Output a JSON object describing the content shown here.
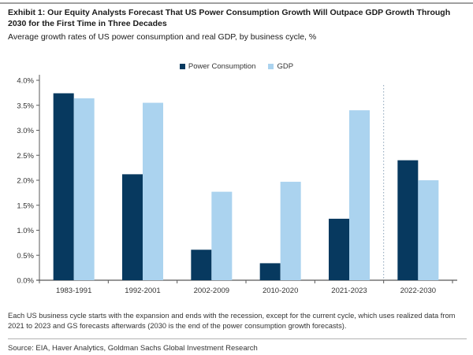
{
  "header": {
    "title": "Exhibit 1: Our Equity Analysts Forecast That US Power Consumption Growth Will Outpace GDP Growth Through 2030 for the First Time in Three Decades",
    "subtitle": "Average growth rates of US power consumption and real GDP, by business cycle, %"
  },
  "chart_data": {
    "type": "bar",
    "title": "Exhibit 1: Our Equity Analysts Forecast That US Power Consumption Growth Will Outpace GDP Growth Through 2030 for the First Time in Three Decades",
    "subtitle": "Average growth rates of US power consumption and real GDP, by business cycle, %",
    "categories": [
      "1983-1991",
      "1992-2001",
      "2002-2009",
      "2010-2020",
      "2021-2023",
      "2022-2030"
    ],
    "series": [
      {
        "name": "Power Consumption",
        "color": "#07395f",
        "values": [
          3.74,
          2.12,
          0.61,
          0.34,
          1.23,
          2.4
        ]
      },
      {
        "name": "GDP",
        "color": "#abd3ef",
        "values": [
          3.64,
          3.55,
          1.77,
          1.97,
          3.4,
          2.0
        ]
      }
    ],
    "xlabel": "",
    "ylabel": "",
    "ylim": [
      0,
      4
    ],
    "y_tick_step": 0.5,
    "y_tick_labels": [
      "0.0%",
      "0.5%",
      "1.0%",
      "1.5%",
      "2.0%",
      "2.5%",
      "3.0%",
      "3.5%",
      "4.0%"
    ],
    "grid": false,
    "legend_position": "top-center",
    "forecast_divider_after_category": "2021-2023",
    "divider_style": "dotted-vertical-line",
    "axis_color": "#595959",
    "divider_color": "#8aa2b8"
  },
  "footnote": "Each US business cycle starts with the expansion and ends with the recession, except for the current cycle, which uses realized data from 2021 to 2023 and GS forecasts afterwards (2030 is the end of the power consumption growth forecasts).",
  "source": "Source: EIA, Haver Analytics, Goldman Sachs Global Investment Research"
}
